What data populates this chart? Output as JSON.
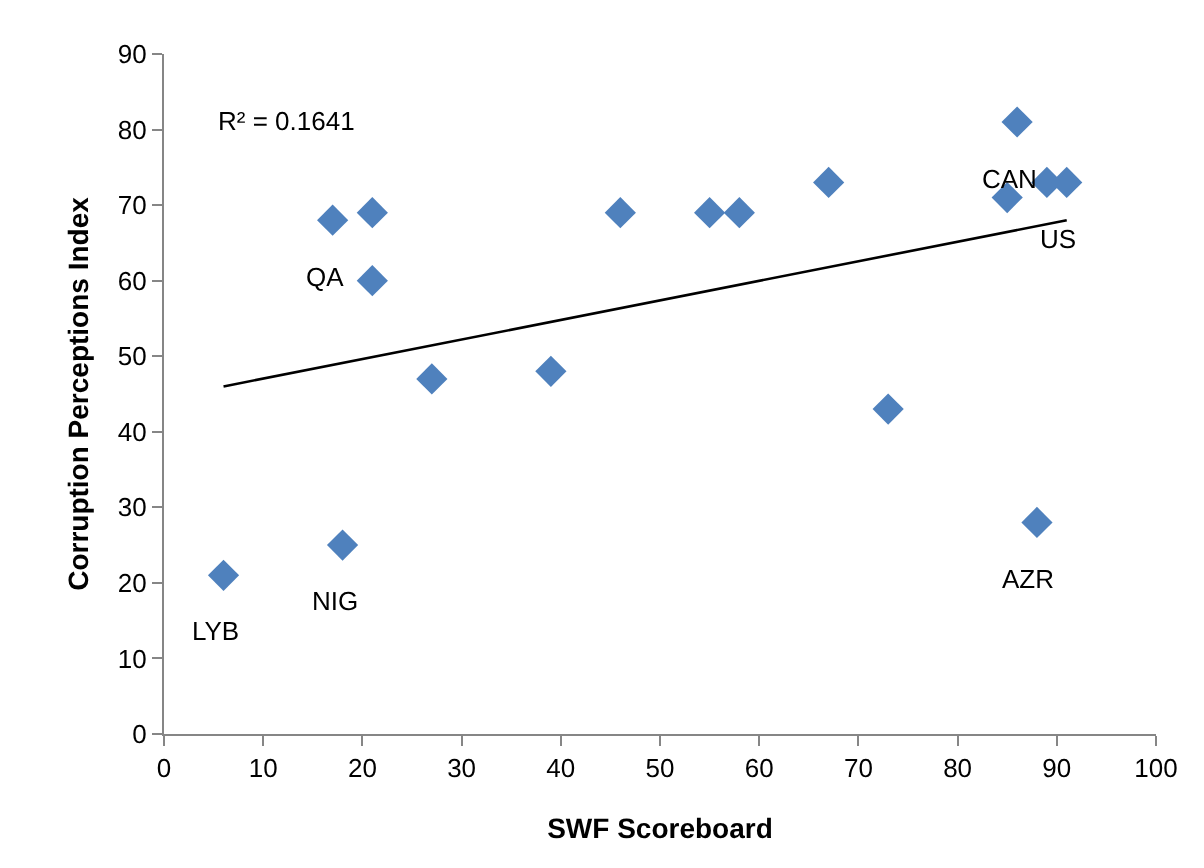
{
  "chart_data": {
    "type": "scatter",
    "xlabel": "SWF Scoreboard",
    "ylabel": "Corruption Perceptions Index",
    "xlim": [
      0,
      100
    ],
    "xticks": [
      0,
      10,
      20,
      30,
      40,
      50,
      60,
      70,
      80,
      90,
      100
    ],
    "ylim": [
      0,
      90
    ],
    "yticks": [
      0,
      10,
      20,
      30,
      40,
      50,
      60,
      70,
      80,
      90
    ],
    "grid": false,
    "marker": "diamond",
    "series": [
      {
        "color": "#4f81bd",
        "x": [
          6,
          18,
          17,
          21,
          21,
          27,
          39,
          46,
          55,
          58,
          67,
          73,
          85,
          86,
          89,
          91,
          88
        ],
        "values": [
          21,
          25,
          68,
          69,
          60,
          47,
          48,
          69,
          69,
          69,
          73,
          43,
          71,
          81,
          73,
          73,
          28
        ]
      },
      {
        "type": "line",
        "color": "#000000",
        "x": [
          6,
          91
        ],
        "values": [
          46,
          68
        ],
        "line_style": "solid",
        "marker": "none"
      }
    ],
    "annotations": [
      "R² = 0.1641",
      {
        "text": "LYB",
        "x": 6,
        "y": 21
      },
      {
        "text": "NIG",
        "x": 18,
        "y": 25
      },
      {
        "text": "QA",
        "x": 17,
        "y": 68
      },
      {
        "text": "CAN",
        "x": 86,
        "y": 81
      },
      {
        "text": "US",
        "x": 91,
        "y": 73
      },
      {
        "text": "AZR",
        "x": 88,
        "y": 28
      }
    ]
  }
}
